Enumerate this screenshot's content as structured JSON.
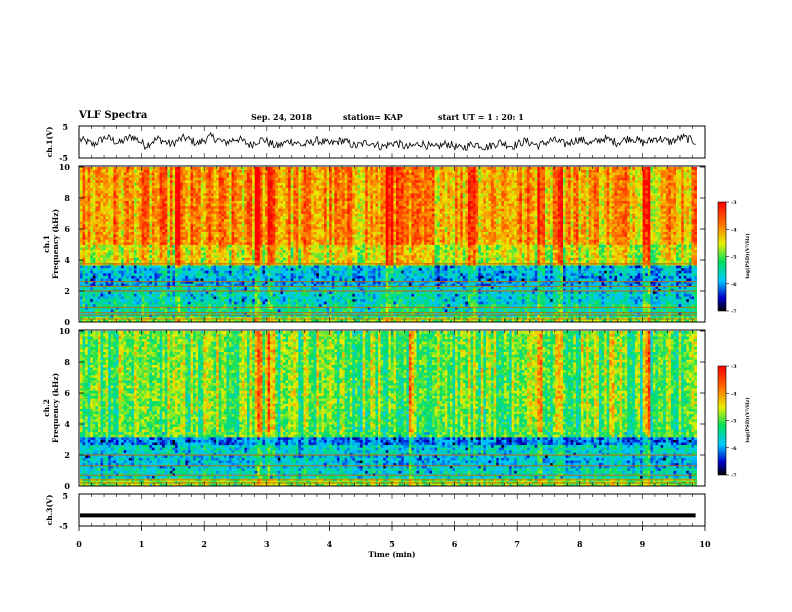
{
  "header": {
    "title": "VLF Spectra",
    "date": "Sep. 24, 2018",
    "station": "station= KAP",
    "start": "start  UT =   1 : 20: 1"
  },
  "chart_data": [
    {
      "type": "line",
      "name": "ch1-waveform",
      "ylabel": "ch.1(V)",
      "ylim": [
        -5,
        5
      ],
      "yticks": [
        "5",
        "-5"
      ],
      "xlim": [
        0,
        10
      ],
      "x_end_data": 9.85,
      "values": [
        0.8,
        0.1,
        -0.9,
        0.5,
        1.6,
        0.6,
        -0.4,
        0.9,
        1.9,
        0.4,
        -1.2,
        0.2,
        1.1,
        0.0,
        -0.8,
        0.6,
        1.4,
        0.5,
        -0.6,
        0.8,
        1.7,
        0.9,
        -0.3,
        0.4,
        1.2,
        0.1,
        -1.0,
        0.3,
        0.9,
        -0.4,
        -1.5,
        -0.6,
        0.4,
        -0.2,
        -1.1,
        -0.4,
        0.5,
        0.1,
        -0.7,
        -0.2,
        0.6,
        -0.3,
        -1.4,
        -0.8,
        0.0,
        -0.6,
        -1.6,
        -1.0,
        -0.2,
        -0.9,
        -1.9,
        -1.2,
        -0.4,
        -1.1,
        -2.1,
        -1.3,
        -0.5,
        -1.2,
        -2.2,
        -1.5,
        -0.6,
        -0.9,
        -1.8,
        -1.0,
        -0.1,
        -0.6,
        -1.4,
        -0.5,
        0.3,
        -0.4,
        -1.2,
        -0.3,
        0.6,
        0.2,
        -0.7,
        0.0,
        0.9,
        0.4,
        -0.5,
        0.3,
        1.2,
        0.5,
        -0.2,
        0.6,
        1.4,
        0.7,
        -0.3,
        0.4,
        1.3,
        0.8,
        0.0,
        0.7,
        1.6,
        0.9,
        0.1
      ]
    },
    {
      "type": "heatmap",
      "name": "ch1-spectrogram",
      "ylabel_top": "ch.1",
      "ylabel": "Frequency  (kHz)",
      "ylim": [
        0,
        10
      ],
      "yticks": [
        "0",
        "2",
        "4",
        "6",
        "8",
        "10"
      ],
      "colorbar": {
        "label": "log(PSD)(V²/Hz)",
        "range": [
          -7,
          -3
        ],
        "ticks": [
          "-3",
          "-4",
          "-5",
          "-6",
          "-7"
        ]
      },
      "bands": [
        {
          "f0": 0.0,
          "f1": 0.4,
          "level": 0.55
        },
        {
          "f0": 0.4,
          "f1": 1.2,
          "level": 0.4
        },
        {
          "f0": 1.2,
          "f1": 2.4,
          "level": 0.34
        },
        {
          "f0": 2.4,
          "f1": 3.0,
          "level": 0.26
        },
        {
          "f0": 3.0,
          "f1": 3.7,
          "level": 0.3
        },
        {
          "f0": 3.7,
          "f1": 5.0,
          "level": 0.62
        },
        {
          "f0": 5.0,
          "f1": 10.0,
          "level": 0.74
        }
      ],
      "lines_khz": [
        0.2,
        0.45,
        0.6,
        0.95,
        2.0,
        2.3,
        2.6,
        3.75
      ],
      "burst_min": [
        1.55,
        2.85,
        3.05,
        4.95,
        5.1,
        6.25,
        7.35,
        7.65,
        9.05
      ]
    },
    {
      "type": "heatmap",
      "name": "ch2-spectrogram",
      "ylabel_top": "ch.2",
      "ylabel": "Frequency  (kHz)",
      "ylim": [
        0,
        10
      ],
      "yticks": [
        "0",
        "2",
        "4",
        "6",
        "8",
        "10"
      ],
      "colorbar": {
        "label": "log(PSD)(V²/Hz)",
        "range": [
          -7,
          -3
        ],
        "ticks": [
          "-3",
          "-4",
          "-5",
          "-6",
          "-7"
        ]
      },
      "bands": [
        {
          "f0": 0.0,
          "f1": 0.5,
          "level": 0.55
        },
        {
          "f0": 0.5,
          "f1": 1.2,
          "level": 0.36
        },
        {
          "f0": 1.2,
          "f1": 2.0,
          "level": 0.3
        },
        {
          "f0": 2.0,
          "f1": 2.6,
          "level": 0.34
        },
        {
          "f0": 2.6,
          "f1": 3.2,
          "level": 0.22
        },
        {
          "f0": 3.2,
          "f1": 5.0,
          "level": 0.5
        },
        {
          "f0": 5.0,
          "f1": 10.0,
          "level": 0.52
        }
      ],
      "lines_khz": [
        0.2,
        0.4,
        0.7,
        1.3,
        2.0
      ],
      "burst_min": [
        2.85,
        3.05,
        5.3,
        7.35,
        7.65,
        8.5,
        9.05
      ]
    },
    {
      "type": "line",
      "name": "ch3-waveform",
      "ylabel": "ch.3(V)",
      "ylim": [
        -5,
        5
      ],
      "yticks": [
        "5",
        "-5"
      ],
      "xlim": [
        0,
        10
      ],
      "x_end_data": 9.85,
      "value": -1.8,
      "xlabel": "Time  (min)",
      "xticks": [
        "0",
        "1",
        "2",
        "3",
        "4",
        "5",
        "6",
        "7",
        "8",
        "9",
        "10"
      ]
    }
  ]
}
